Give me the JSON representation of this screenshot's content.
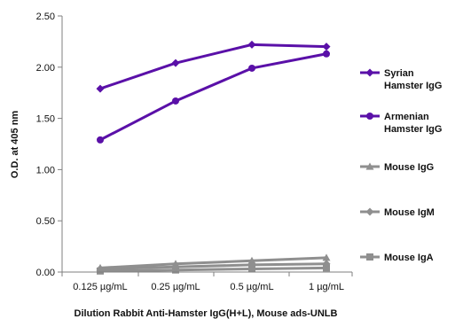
{
  "chart_data": {
    "type": "line",
    "title": "",
    "xlabel": "Dilution Rabbit Anti-Hamster IgG(H+L), Mouse ads-UNLB",
    "ylabel": "O.D. at 405 nm",
    "categories": [
      "0.125 µg/mL",
      "0.25 µg/mL",
      "0.5 µg/mL",
      "1 µg/mL"
    ],
    "ylim": [
      0,
      2.5
    ],
    "yticks": [
      "0.00",
      "0.50",
      "1.00",
      "1.50",
      "2.00",
      "2.50"
    ],
    "grid": false,
    "legend_position": "right",
    "series": [
      {
        "name": [
          "Syrian",
          "Hamster IgG"
        ],
        "values": [
          1.79,
          2.04,
          2.22,
          2.2
        ],
        "color": "#5a10a8",
        "marker": "diamond"
      },
      {
        "name": [
          "Armenian",
          "Hamster IgG"
        ],
        "values": [
          1.29,
          1.67,
          1.99,
          2.13
        ],
        "color": "#5a10a8",
        "marker": "circle"
      },
      {
        "name": [
          "Mouse IgG"
        ],
        "values": [
          0.04,
          0.08,
          0.11,
          0.14
        ],
        "color": "#8f8f8f",
        "marker": "triangle"
      },
      {
        "name": [
          "Mouse IgM"
        ],
        "values": [
          0.03,
          0.05,
          0.07,
          0.08
        ],
        "color": "#8f8f8f",
        "marker": "diamond"
      },
      {
        "name": [
          "Mouse IgA"
        ],
        "values": [
          0.01,
          0.02,
          0.03,
          0.04
        ],
        "color": "#8f8f8f",
        "marker": "square"
      }
    ]
  }
}
